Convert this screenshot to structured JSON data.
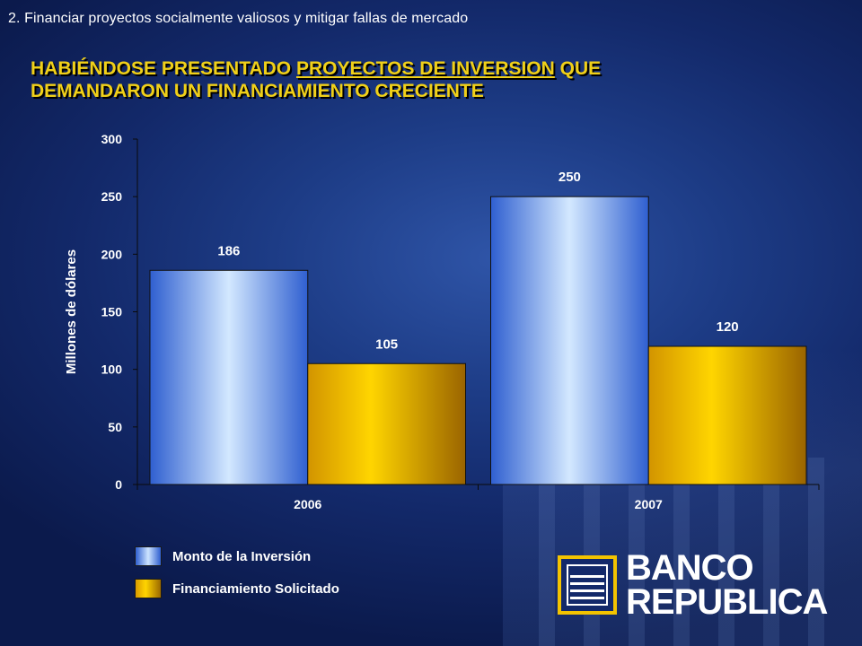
{
  "slide": {
    "subtitle": "2.  Financiar proyectos socialmente valiosos y mitigar fallas de mercado",
    "headline_part1": "HABIÉNDOSE PRESENTADO ",
    "headline_underlined": "PROYECTOS DE INVERSION",
    "headline_part2": " QUE",
    "headline_line2": "DEMANDARON UN FINANCIAMIENTO CRECIENTE"
  },
  "chart_data": {
    "type": "bar",
    "categories": [
      "2006",
      "2007"
    ],
    "series": [
      {
        "name": "Monto de la Inversión",
        "values": [
          186,
          250
        ],
        "color": "#5d8cf0"
      },
      {
        "name": "Financiamiento Solicitado",
        "values": [
          105,
          120
        ],
        "color": "#f3c300"
      }
    ],
    "data_labels": [
      [
        "186",
        "250"
      ],
      [
        "105",
        "120"
      ]
    ],
    "xlabel": "",
    "ylabel": "Millones de dólares",
    "ylim": [
      0,
      300
    ],
    "yticks": [
      "0",
      "50",
      "100",
      "150",
      "200",
      "250",
      "300"
    ],
    "grid": false,
    "legend_position": "bottom-left"
  },
  "legend": {
    "item1": "Monto de la Inversión",
    "item2": "Financiamiento Solicitado"
  },
  "logo": {
    "line1": "BANCO",
    "line2": "REPUBLICA"
  }
}
